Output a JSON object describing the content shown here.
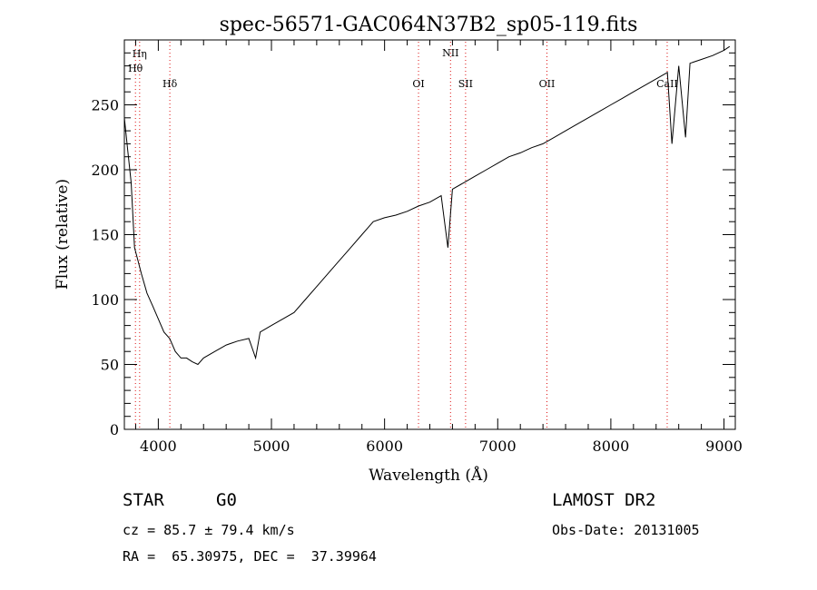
{
  "chart_data": {
    "type": "line",
    "title": "spec-56571-GAC064N37B2_sp05-119.fits",
    "xlabel": "Wavelength (Å)",
    "ylabel": "Flux (relative)",
    "xlim": [
      3700,
      9100
    ],
    "ylim": [
      0,
      300
    ],
    "x_ticks": [
      4000,
      5000,
      6000,
      7000,
      8000,
      9000
    ],
    "y_ticks": [
      0,
      50,
      100,
      150,
      200,
      250
    ],
    "grid": false,
    "series": [
      {
        "x": [
          3700,
          3730,
          3760,
          3790,
          3820,
          3850,
          3900,
          3950,
          4000,
          4050,
          4100,
          4150,
          4200,
          4250,
          4300,
          4350,
          4400,
          4500,
          4600,
          4700,
          4800,
          4860,
          4900,
          5000,
          5100,
          5200,
          5300,
          5400,
          5500,
          5600,
          5700,
          5800,
          5900,
          6000,
          6100,
          6200,
          6300,
          6400,
          6500,
          6560,
          6600,
          6700,
          6800,
          6900,
          7000,
          7100,
          7200,
          7300,
          7400,
          7500,
          7600,
          7700,
          7800,
          7900,
          8000,
          8100,
          8200,
          8300,
          8400,
          8500,
          8540,
          8600,
          8660,
          8700,
          8800,
          8900,
          9000,
          9050
        ],
        "y": [
          240,
          215,
          190,
          140,
          130,
          120,
          105,
          95,
          85,
          75,
          70,
          60,
          55,
          55,
          52,
          50,
          55,
          60,
          65,
          68,
          70,
          55,
          75,
          80,
          85,
          90,
          100,
          110,
          120,
          130,
          140,
          150,
          160,
          163,
          165,
          168,
          172,
          175,
          180,
          140,
          185,
          190,
          195,
          200,
          205,
          210,
          213,
          217,
          220,
          225,
          230,
          235,
          240,
          245,
          250,
          255,
          260,
          265,
          270,
          275,
          220,
          280,
          225,
          282,
          285,
          288,
          292,
          295
        ]
      }
    ],
    "line_markers": [
      {
        "label": "Hη",
        "x": 3835
      },
      {
        "label": "Hθ",
        "x": 3798
      },
      {
        "label": "Hδ",
        "x": 4102
      },
      {
        "label": "OI",
        "x": 6300
      },
      {
        "label": "NII",
        "x": 6583
      },
      {
        "label": "SII",
        "x": 6716
      },
      {
        "label": "OII",
        "x": 7435
      },
      {
        "label": "CaII",
        "x": 8498
      }
    ]
  },
  "footer": {
    "object_type": "STAR",
    "subclass": "G0",
    "survey": "LAMOST DR2",
    "cz": "cz = 85.7 ± 79.4 km/s",
    "obs_date": "Obs-Date: 20131005",
    "coords": "RA =  65.30975, DEC =  37.39964"
  }
}
